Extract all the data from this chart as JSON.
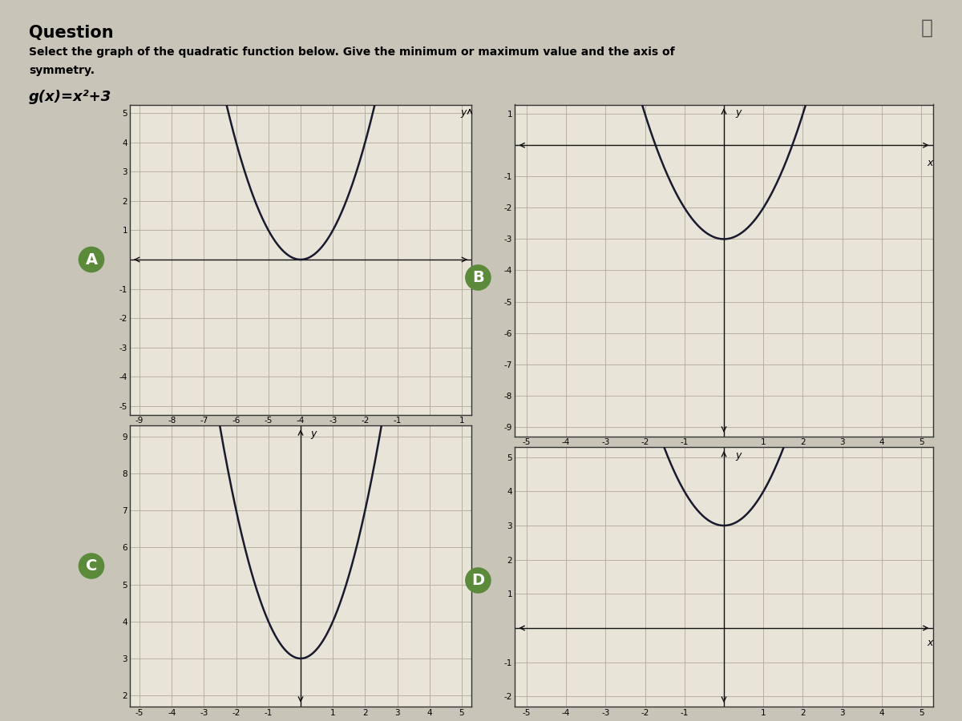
{
  "title": "Question",
  "subtitle": "Select the graph of the quadratic function below. Give the minimum or maximum value and the axis of\nsymmetry.",
  "function_label": "g(x)=x²+3",
  "bg_outer": "#c8c4b8",
  "bg_inner": "#e8e4d8",
  "grid_color": "#b0a898",
  "curve_color": "#1a1a2e",
  "axis_color": "#111111",
  "label_bg": "#5a8a3a",
  "graphs": [
    {
      "label": "A",
      "xlim": [
        -9,
        1
      ],
      "ylim": [
        -5,
        5
      ],
      "xticks": [
        -9,
        -8,
        -7,
        -6,
        -5,
        -4,
        -3,
        -2,
        -1,
        0,
        1
      ],
      "yticks": [
        -5,
        -4,
        -3,
        -2,
        -1,
        0,
        1,
        2,
        3,
        4,
        5
      ],
      "vertex_x": -4,
      "vertex_y": 0,
      "a": 1,
      "show_xaxis": true,
      "show_yaxis": false,
      "x_arrow_at_right": true,
      "y_arrow_at_top": true,
      "xaxis_y": 0,
      "yaxis_x": 0,
      "xlabel_side": "right",
      "ylabel_side": "top"
    },
    {
      "label": "B",
      "xlim": [
        -5,
        5
      ],
      "ylim": [
        -9,
        1
      ],
      "xticks": [
        -5,
        -4,
        -3,
        -2,
        -1,
        0,
        1,
        2,
        3,
        4,
        5
      ],
      "yticks": [
        -9,
        -8,
        -7,
        -6,
        -5,
        -4,
        -3,
        -2,
        -1,
        0,
        1
      ],
      "vertex_x": 0,
      "vertex_y": -3,
      "a": 1,
      "show_xaxis": true,
      "show_yaxis": true,
      "x_arrow_at_right": true,
      "y_arrow_at_top": true,
      "xaxis_y": 0,
      "yaxis_x": 0,
      "xlabel_side": "right",
      "ylabel_side": "top"
    },
    {
      "label": "C",
      "xlim": [
        -5,
        5
      ],
      "ylim": [
        2,
        9
      ],
      "xticks": [
        -5,
        -4,
        -3,
        -2,
        -1,
        0,
        1,
        2,
        3,
        4,
        5
      ],
      "yticks": [
        2,
        3,
        4,
        5,
        6,
        7,
        8,
        9
      ],
      "vertex_x": 0,
      "vertex_y": 3,
      "a": 1,
      "show_xaxis": false,
      "show_yaxis": true,
      "x_arrow_at_right": false,
      "y_arrow_at_top": true,
      "xaxis_y": 0,
      "yaxis_x": 0,
      "xlabel_side": "none",
      "ylabel_side": "top"
    },
    {
      "label": "D",
      "xlim": [
        -5,
        5
      ],
      "ylim": [
        -2,
        5
      ],
      "xticks": [
        -5,
        -4,
        -3,
        -2,
        -1,
        0,
        1,
        2,
        3,
        4,
        5
      ],
      "yticks": [
        -2,
        -1,
        0,
        1,
        2,
        3,
        4,
        5
      ],
      "vertex_x": 0,
      "vertex_y": 3,
      "a": 1,
      "show_xaxis": true,
      "show_yaxis": true,
      "x_arrow_at_right": true,
      "y_arrow_at_top": true,
      "xaxis_y": 0,
      "yaxis_x": 0,
      "xlabel_side": "right",
      "ylabel_side": "top"
    }
  ]
}
